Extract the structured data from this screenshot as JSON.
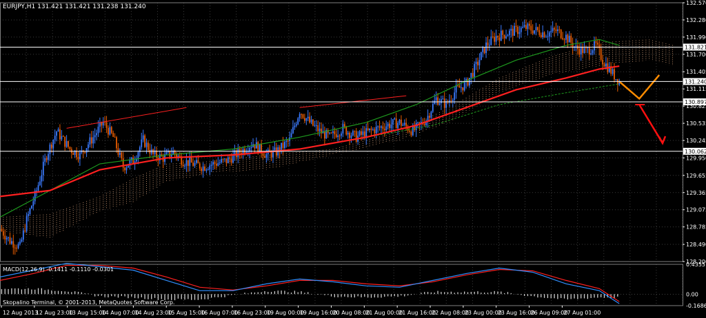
{
  "window": {
    "symbol_line": "EURJPY,H1  131.421 131.421 131.238 131.240",
    "copyright": "Skopalino Terminal, © 2001-2013, MetaQuotes Software Corp."
  },
  "colors": {
    "background": "#000000",
    "grid": "#3c3c3c",
    "bull": "#3b7bff",
    "bear": "#e65c00",
    "ma_red": "#ff2020",
    "ma_green": "#1e9a1e",
    "cloud": "#d9a27a",
    "macd_main": "#2f8fff",
    "macd_signal": "#ff2020",
    "orange_arrow": "#ff8c00",
    "red_arrow": "#ff1010"
  },
  "chart_data": {
    "type": "candlestick",
    "title": "EURJPY,H1",
    "ohlc_readout": {
      "open": 131.421,
      "high": 131.421,
      "low": 131.238,
      "close": 131.24
    },
    "ylim": [
      128.2,
      132.57
    ],
    "y_ticks": [
      "132.570",
      "132.280",
      "131.990",
      "131.700",
      "131.405",
      "131.115",
      "130.825",
      "130.535",
      "130.245",
      "129.950",
      "129.655",
      "129.365",
      "129.075",
      "128.785",
      "128.490",
      "128.200"
    ],
    "x_ticks": [
      "12 Aug 2013",
      "12 Aug 23:00",
      "13 Aug 15:00",
      "14 Aug 07:00",
      "14 Aug 23:00",
      "15 Aug 15:00",
      "16 Aug 07:00",
      "16 Aug 23:00",
      "19 Aug 00:00",
      "19 Aug 16:00",
      "20 Aug 08:00",
      "21 Aug 00:00",
      "21 Aug 16:00",
      "22 Aug 08:00",
      "23 Aug 00:00",
      "23 Aug 16:00",
      "26 Aug 09:00",
      "27 Aug 01:00"
    ],
    "horizontal_levels": [
      131.821,
      131.24,
      130.897,
      130.062
    ],
    "close_path": [
      [
        0,
        128.75
      ],
      [
        6,
        128.55
      ],
      [
        12,
        128.45
      ],
      [
        16,
        128.9
      ],
      [
        22,
        129.4
      ],
      [
        28,
        130.0
      ],
      [
        34,
        130.4
      ],
      [
        38,
        130.25
      ],
      [
        42,
        130.1
      ],
      [
        48,
        130.0
      ],
      [
        56,
        130.3
      ],
      [
        62,
        130.55
      ],
      [
        68,
        130.3
      ],
      [
        74,
        129.8
      ],
      [
        80,
        129.9
      ],
      [
        86,
        130.25
      ],
      [
        92,
        130.0
      ],
      [
        98,
        129.95
      ],
      [
        104,
        130.05
      ],
      [
        110,
        129.9
      ],
      [
        116,
        129.85
      ],
      [
        122,
        129.8
      ],
      [
        128,
        129.85
      ],
      [
        136,
        129.9
      ],
      [
        144,
        130.05
      ],
      [
        152,
        130.2
      ],
      [
        160,
        130.0
      ],
      [
        166,
        130.05
      ],
      [
        174,
        130.25
      ],
      [
        180,
        130.75
      ],
      [
        186,
        130.55
      ],
      [
        192,
        130.4
      ],
      [
        198,
        130.3
      ],
      [
        206,
        130.45
      ],
      [
        214,
        130.3
      ],
      [
        222,
        130.4
      ],
      [
        232,
        130.5
      ],
      [
        240,
        130.55
      ],
      [
        248,
        130.4
      ],
      [
        256,
        130.6
      ],
      [
        262,
        130.95
      ],
      [
        268,
        130.85
      ],
      [
        274,
        131.1
      ],
      [
        280,
        131.2
      ],
      [
        286,
        131.5
      ],
      [
        292,
        131.85
      ],
      [
        298,
        132.0
      ],
      [
        304,
        132.05
      ],
      [
        310,
        132.1
      ],
      [
        316,
        132.15
      ],
      [
        322,
        132.1
      ],
      [
        328,
        132.05
      ],
      [
        334,
        132.1
      ],
      [
        340,
        132.0
      ],
      [
        346,
        131.8
      ],
      [
        352,
        131.75
      ],
      [
        358,
        131.85
      ],
      [
        362,
        131.6
      ],
      [
        366,
        131.45
      ],
      [
        370,
        131.3
      ],
      [
        372,
        131.24
      ]
    ],
    "ma_red": [
      [
        0,
        129.3
      ],
      [
        30,
        129.4
      ],
      [
        60,
        129.75
      ],
      [
        100,
        129.95
      ],
      [
        140,
        130.0
      ],
      [
        180,
        130.1
      ],
      [
        220,
        130.3
      ],
      [
        250,
        130.5
      ],
      [
        280,
        130.8
      ],
      [
        310,
        131.1
      ],
      [
        340,
        131.3
      ],
      [
        360,
        131.45
      ],
      [
        372,
        131.5
      ]
    ],
    "ma_green": [
      [
        0,
        128.95
      ],
      [
        30,
        129.4
      ],
      [
        60,
        129.85
      ],
      [
        100,
        130.0
      ],
      [
        140,
        130.1
      ],
      [
        180,
        130.3
      ],
      [
        220,
        130.55
      ],
      [
        250,
        130.85
      ],
      [
        280,
        131.25
      ],
      [
        310,
        131.6
      ],
      [
        340,
        131.85
      ],
      [
        360,
        131.95
      ],
      [
        372,
        131.85
      ]
    ],
    "ma_green_dashed": [
      [
        200,
        130.2
      ],
      [
        260,
        130.5
      ],
      [
        300,
        130.85
      ],
      [
        340,
        131.05
      ],
      [
        372,
        131.2
      ]
    ],
    "cloud": {
      "upper": [
        [
          0,
          128.95
        ],
        [
          30,
          129.0
        ],
        [
          60,
          129.3
        ],
        [
          80,
          129.6
        ],
        [
          100,
          129.85
        ],
        [
          130,
          129.9
        ],
        [
          160,
          130.0
        ],
        [
          200,
          130.1
        ],
        [
          240,
          130.4
        ],
        [
          270,
          130.8
        ],
        [
          300,
          131.3
        ],
        [
          330,
          131.65
        ],
        [
          360,
          131.9
        ],
        [
          390,
          131.95
        ],
        [
          405,
          131.85
        ]
      ],
      "lower": [
        [
          0,
          128.7
        ],
        [
          30,
          128.6
        ],
        [
          60,
          129.05
        ],
        [
          80,
          129.2
        ],
        [
          100,
          129.55
        ],
        [
          130,
          129.7
        ],
        [
          160,
          129.75
        ],
        [
          200,
          130.0
        ],
        [
          240,
          130.25
        ],
        [
          270,
          130.55
        ],
        [
          300,
          131.05
        ],
        [
          330,
          131.35
        ],
        [
          360,
          131.5
        ],
        [
          390,
          131.6
        ],
        [
          405,
          131.5
        ]
      ]
    },
    "divergence_lines": [
      {
        "from": [
          40,
          130.45
        ],
        "to": [
          112,
          130.8
        ]
      },
      {
        "from": [
          180,
          130.8
        ],
        "to": [
          244,
          131.0
        ]
      }
    ],
    "orange_projection": [
      [
        372,
        131.24
      ],
      [
        384,
        130.95
      ],
      [
        396,
        131.35
      ]
    ],
    "red_projection": [
      [
        384,
        130.85
      ],
      [
        398,
        130.2
      ]
    ],
    "macd": {
      "label": "MACD(12,26,9) -0.1411 -0.1110 -0.0301",
      "ylim": [
        -0.1686,
        0.4355
      ],
      "y_ticks": [
        "0.4355",
        "0.00",
        "-0.1686"
      ],
      "main": [
        [
          0,
          0.25
        ],
        [
          20,
          0.35
        ],
        [
          40,
          0.45
        ],
        [
          60,
          0.4
        ],
        [
          80,
          0.35
        ],
        [
          100,
          0.2
        ],
        [
          120,
          0.05
        ],
        [
          140,
          0.05
        ],
        [
          160,
          0.15
        ],
        [
          180,
          0.22
        ],
        [
          200,
          0.18
        ],
        [
          220,
          0.12
        ],
        [
          240,
          0.1
        ],
        [
          260,
          0.2
        ],
        [
          280,
          0.3
        ],
        [
          300,
          0.38
        ],
        [
          320,
          0.32
        ],
        [
          340,
          0.15
        ],
        [
          360,
          0.05
        ],
        [
          372,
          -0.14
        ]
      ],
      "signal": [
        [
          0,
          0.2
        ],
        [
          20,
          0.3
        ],
        [
          40,
          0.42
        ],
        [
          60,
          0.42
        ],
        [
          80,
          0.38
        ],
        [
          100,
          0.25
        ],
        [
          120,
          0.1
        ],
        [
          140,
          0.06
        ],
        [
          160,
          0.12
        ],
        [
          180,
          0.2
        ],
        [
          200,
          0.2
        ],
        [
          220,
          0.15
        ],
        [
          240,
          0.12
        ],
        [
          260,
          0.18
        ],
        [
          280,
          0.28
        ],
        [
          300,
          0.36
        ],
        [
          320,
          0.34
        ],
        [
          340,
          0.2
        ],
        [
          360,
          0.08
        ],
        [
          372,
          -0.11
        ]
      ]
    }
  }
}
